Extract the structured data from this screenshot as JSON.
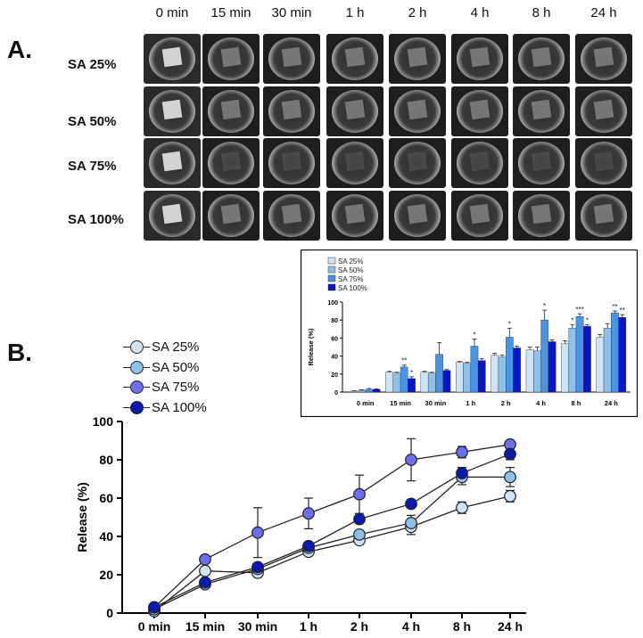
{
  "panel_a": {
    "letter": "A.",
    "time_points": [
      "0 min",
      "15 min",
      "30 min",
      "1 h",
      "2 h",
      "4 h",
      "8 h",
      "24 h"
    ],
    "rows": [
      "SA 25%",
      "SA 50%",
      "SA 75%",
      "SA 100%"
    ]
  },
  "panel_b": {
    "letter": "B."
  },
  "colors": {
    "sa25": "#cfe5f5",
    "sa50": "#8ec1ea",
    "sa75": "#4a94e6",
    "sa100": "#0a14c8",
    "sa75_dot": "#6b6ff0",
    "sa100_dot": "#0a1ab0"
  },
  "chart_data": [
    {
      "type": "line",
      "title": "",
      "xlabel": "",
      "ylabel": "Release (%)",
      "categories": [
        "0 min",
        "15 min",
        "30 min",
        "1 h",
        "2 h",
        "4 h",
        "8 h",
        "24 h"
      ],
      "ylim": [
        0,
        100
      ],
      "yticks": [
        0,
        20,
        40,
        60,
        80,
        100
      ],
      "series": [
        {
          "name": "SA 25%",
          "values": [
            1,
            22,
            21,
            32,
            38,
            45,
            55,
            61
          ],
          "errors": [
            0.5,
            1,
            1.5,
            1.5,
            2,
            4,
            3,
            3
          ]
        },
        {
          "name": "SA 50%",
          "values": [
            2,
            15,
            23,
            34,
            41,
            47,
            71,
            71
          ],
          "errors": [
            0.5,
            1.5,
            2,
            2,
            2,
            4,
            4,
            5
          ]
        },
        {
          "name": "SA 75%",
          "values": [
            3,
            28,
            42,
            52,
            62,
            80,
            84,
            88
          ],
          "errors": [
            1,
            1.5,
            13,
            8,
            10,
            11,
            3,
            2
          ]
        },
        {
          "name": "SA 100%",
          "values": [
            3,
            16,
            24,
            35,
            49,
            57,
            73,
            83
          ],
          "errors": [
            0.5,
            1,
            1.5,
            2,
            2,
            2,
            3,
            3
          ]
        }
      ]
    },
    {
      "type": "bar",
      "title": "",
      "xlabel": "",
      "ylabel": "Release (%)",
      "categories": [
        "0 min",
        "15 min",
        "30 min",
        "1 h",
        "2 h",
        "4 h",
        "8 h",
        "24 h"
      ],
      "ylim": [
        0,
        100
      ],
      "yticks": [
        0,
        20,
        40,
        60,
        80,
        100
      ],
      "series": [
        {
          "name": "SA 25%",
          "values": [
            1,
            22,
            22,
            33,
            41,
            47,
            54,
            61
          ],
          "errors": [
            0.5,
            1,
            1,
            1,
            2,
            3,
            3,
            3
          ]
        },
        {
          "name": "SA 50%",
          "values": [
            2,
            21,
            21,
            32,
            39,
            46,
            71,
            71
          ],
          "errors": [
            0.5,
            1,
            1,
            1,
            2,
            4,
            4,
            5
          ]
        },
        {
          "name": "SA 75%",
          "values": [
            3,
            28,
            42,
            51,
            61,
            80,
            84,
            88
          ],
          "errors": [
            1,
            2,
            13,
            8,
            10,
            11,
            3,
            2
          ]
        },
        {
          "name": "SA 100%",
          "values": [
            3,
            15,
            24,
            35,
            49,
            56,
            73,
            83
          ],
          "errors": [
            0.5,
            2,
            1,
            2,
            2,
            2,
            2,
            3
          ]
        }
      ],
      "annotations": [
        {
          "category": "15 min",
          "series": "SA 75%",
          "text": "**"
        },
        {
          "category": "15 min",
          "series": "SA 100%",
          "text": "*"
        },
        {
          "category": "1 h",
          "series": "SA 75%",
          "text": "*"
        },
        {
          "category": "2 h",
          "series": "SA 75%",
          "text": "*"
        },
        {
          "category": "4 h",
          "series": "SA 75%",
          "text": "*"
        },
        {
          "category": "8 h",
          "series": "SA 50%",
          "text": "*"
        },
        {
          "category": "8 h",
          "series": "SA 75%",
          "text": "***"
        },
        {
          "category": "8 h",
          "series": "SA 100%",
          "text": "*"
        },
        {
          "category": "24 h",
          "series": "SA 75%",
          "text": "**"
        },
        {
          "category": "24 h",
          "series": "SA 100%",
          "text": "**"
        }
      ]
    }
  ]
}
